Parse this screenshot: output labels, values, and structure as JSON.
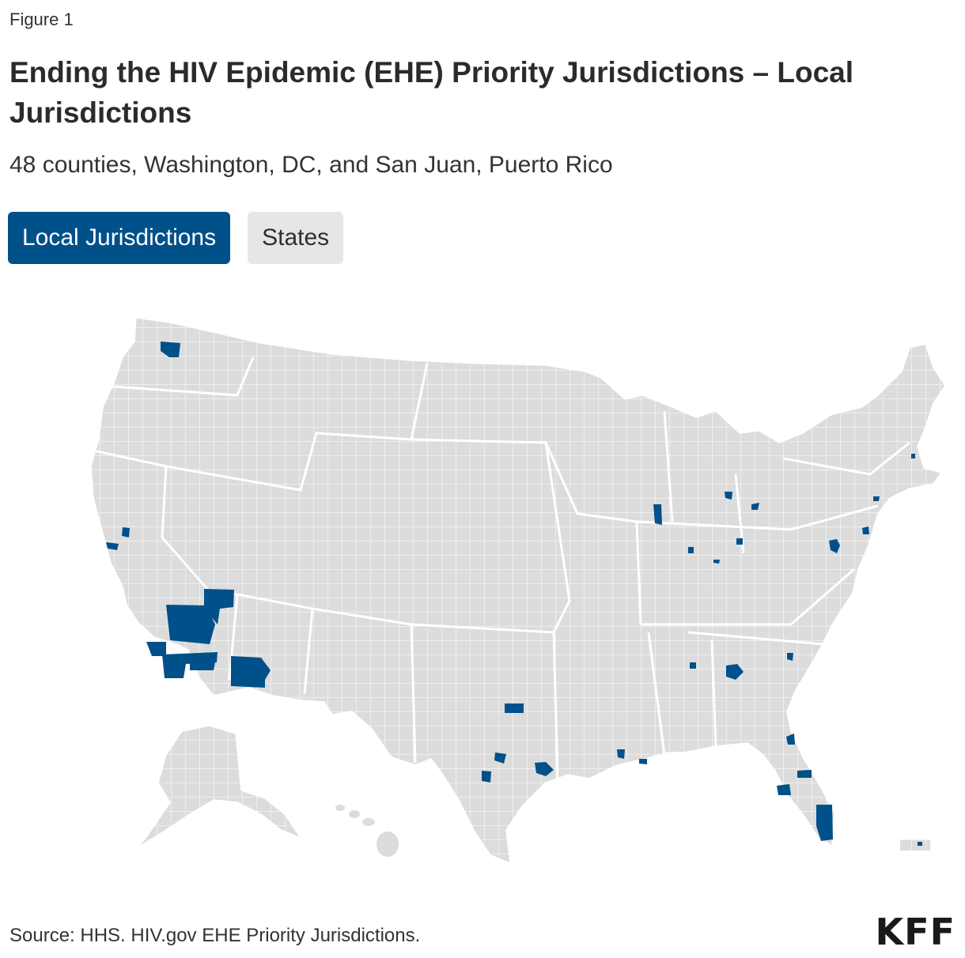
{
  "figure_label": "Figure 1",
  "title": "Ending the HIV Epidemic (EHE) Priority Jurisdictions –  Local Jurisdictions",
  "subtitle": "48 counties, Washington, DC, and San Juan, Puerto Rico",
  "tabs": [
    {
      "label": "Local Jurisdictions",
      "active": true
    },
    {
      "label": "States",
      "active": false
    }
  ],
  "map": {
    "base_color": "#dcdcdc",
    "border_color": "#ffffff",
    "highlight_color": "#00508a"
  },
  "source": "Source: HHS. HIV.gov EHE Priority Jurisdictions.",
  "logo": "KFF"
}
